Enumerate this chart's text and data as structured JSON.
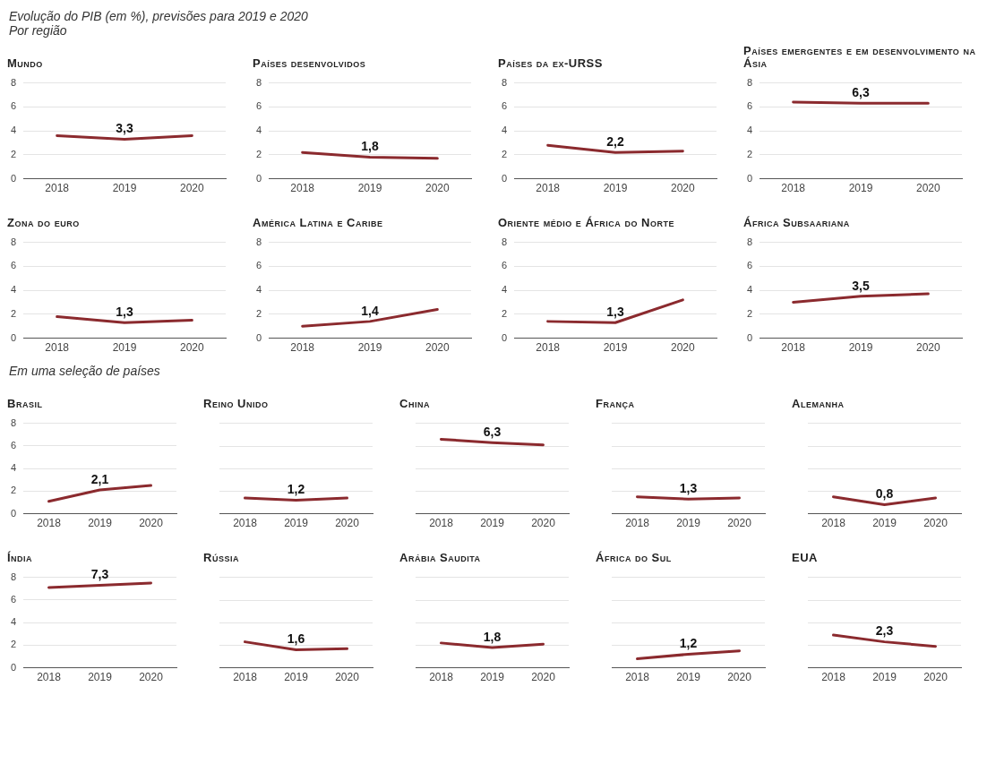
{
  "chart_data": [
    {
      "type": "other",
      "title": "Evolução do PIB (em %), previsões para 2019 e 2020",
      "subtitle": "Por região"
    },
    {
      "type": "line",
      "title": "Mundo",
      "categories": [
        "2018",
        "2019",
        "2020"
      ],
      "values": [
        3.6,
        3.3,
        3.6
      ],
      "value_labels": [
        null,
        "3,3",
        null
      ],
      "color": "#8b2a2e",
      "ylim": [
        0,
        8
      ],
      "yticks": [
        0,
        2,
        4,
        6,
        8
      ],
      "grid": "y"
    },
    {
      "type": "line",
      "title": "Países desenvolvidos",
      "categories": [
        "2018",
        "2019",
        "2020"
      ],
      "values": [
        2.2,
        1.8,
        1.7
      ],
      "value_labels": [
        null,
        "1,8",
        null
      ],
      "color": "#8b2a2e",
      "ylim": [
        0,
        8
      ],
      "yticks": [
        0,
        2,
        4,
        6,
        8
      ],
      "grid": "y"
    },
    {
      "type": "line",
      "title": "Países da ex-URSS",
      "categories": [
        "2018",
        "2019",
        "2020"
      ],
      "values": [
        2.8,
        2.2,
        2.3
      ],
      "value_labels": [
        null,
        "2,2",
        null
      ],
      "color": "#8b2a2e",
      "ylim": [
        0,
        8
      ],
      "yticks": [
        0,
        2,
        4,
        6,
        8
      ],
      "grid": "y"
    },
    {
      "type": "line",
      "title": "Países emergentes e em desenvolvimento na Ásia",
      "categories": [
        "2018",
        "2019",
        "2020"
      ],
      "values": [
        6.4,
        6.3,
        6.3
      ],
      "value_labels": [
        null,
        "6,3",
        null
      ],
      "color": "#8b2a2e",
      "ylim": [
        0,
        8
      ],
      "yticks": [
        0,
        2,
        4,
        6,
        8
      ],
      "grid": "y"
    },
    {
      "type": "line",
      "title": "Zona do euro",
      "categories": [
        "2018",
        "2019",
        "2020"
      ],
      "values": [
        1.8,
        1.3,
        1.5
      ],
      "value_labels": [
        null,
        "1,3",
        null
      ],
      "color": "#8b2a2e",
      "ylim": [
        0,
        8
      ],
      "yticks": [
        0,
        2,
        4,
        6,
        8
      ],
      "grid": "y"
    },
    {
      "type": "line",
      "title": "América Latina e Caribe",
      "categories": [
        "2018",
        "2019",
        "2020"
      ],
      "values": [
        1.0,
        1.4,
        2.4
      ],
      "value_labels": [
        null,
        "1,4",
        null
      ],
      "color": "#8b2a2e",
      "ylim": [
        0,
        8
      ],
      "yticks": [
        0,
        2,
        4,
        6,
        8
      ],
      "grid": "y"
    },
    {
      "type": "line",
      "title": "Oriente médio e África do Norte",
      "categories": [
        "2018",
        "2019",
        "2020"
      ],
      "values": [
        1.4,
        1.3,
        3.2
      ],
      "value_labels": [
        null,
        "1,3",
        null
      ],
      "color": "#8b2a2e",
      "ylim": [
        0,
        8
      ],
      "yticks": [
        0,
        2,
        4,
        6,
        8
      ],
      "grid": "y"
    },
    {
      "type": "line",
      "title": "África Subsaariana",
      "categories": [
        "2018",
        "2019",
        "2020"
      ],
      "values": [
        3.0,
        3.5,
        3.7
      ],
      "value_labels": [
        null,
        "3,5",
        null
      ],
      "color": "#8b2a2e",
      "ylim": [
        0,
        8
      ],
      "yticks": [
        0,
        2,
        4,
        6,
        8
      ],
      "grid": "y"
    },
    {
      "type": "other",
      "title": "Em uma seleção de países"
    },
    {
      "type": "line",
      "title": "Brasil",
      "categories": [
        "2018",
        "2019",
        "2020"
      ],
      "values": [
        1.1,
        2.1,
        2.5
      ],
      "value_labels": [
        null,
        "2,1",
        null
      ],
      "color": "#8b2a2e",
      "ylim": [
        0,
        8
      ],
      "yticks": [
        0,
        2,
        4,
        6,
        8
      ],
      "grid": "y"
    },
    {
      "type": "line",
      "title": "Reino Unido",
      "categories": [
        "2018",
        "2019",
        "2020"
      ],
      "values": [
        1.4,
        1.2,
        1.4
      ],
      "value_labels": [
        null,
        "1,2",
        null
      ],
      "color": "#8b2a2e",
      "ylim": [
        0,
        8
      ],
      "yticks": [
        0,
        2,
        4,
        6,
        8
      ],
      "grid": "y",
      "tick_labels": "x"
    },
    {
      "type": "line",
      "title": "China",
      "categories": [
        "2018",
        "2019",
        "2020"
      ],
      "values": [
        6.6,
        6.3,
        6.1
      ],
      "value_labels": [
        null,
        "6,3",
        null
      ],
      "color": "#8b2a2e",
      "ylim": [
        0,
        8
      ],
      "yticks": [
        0,
        2,
        4,
        6,
        8
      ],
      "grid": "y",
      "tick_labels": "x"
    },
    {
      "type": "line",
      "title": "França",
      "categories": [
        "2018",
        "2019",
        "2020"
      ],
      "values": [
        1.5,
        1.3,
        1.4
      ],
      "value_labels": [
        null,
        "1,3",
        null
      ],
      "color": "#8b2a2e",
      "ylim": [
        0,
        8
      ],
      "yticks": [
        0,
        2,
        4,
        6,
        8
      ],
      "grid": "y",
      "tick_labels": "x"
    },
    {
      "type": "line",
      "title": "Alemanha",
      "categories": [
        "2018",
        "2019",
        "2020"
      ],
      "values": [
        1.5,
        0.8,
        1.4
      ],
      "value_labels": [
        null,
        "0,8",
        null
      ],
      "color": "#8b2a2e",
      "ylim": [
        0,
        8
      ],
      "yticks": [
        0,
        2,
        4,
        6,
        8
      ],
      "grid": "y",
      "tick_labels": "x"
    },
    {
      "type": "line",
      "title": "Índia",
      "categories": [
        "2018",
        "2019",
        "2020"
      ],
      "values": [
        7.1,
        7.3,
        7.5
      ],
      "value_labels": [
        null,
        "7,3",
        null
      ],
      "color": "#8b2a2e",
      "ylim": [
        0,
        8
      ],
      "yticks": [
        0,
        2,
        4,
        6,
        8
      ],
      "grid": "y"
    },
    {
      "type": "line",
      "title": "Rússia",
      "categories": [
        "2018",
        "2019",
        "2020"
      ],
      "values": [
        2.3,
        1.6,
        1.7
      ],
      "value_labels": [
        null,
        "1,6",
        null
      ],
      "color": "#8b2a2e",
      "ylim": [
        0,
        8
      ],
      "yticks": [
        0,
        2,
        4,
        6,
        8
      ],
      "grid": "y",
      "tick_labels": "x"
    },
    {
      "type": "line",
      "title": "Arábia Saudita",
      "categories": [
        "2018",
        "2019",
        "2020"
      ],
      "values": [
        2.2,
        1.8,
        2.1
      ],
      "value_labels": [
        null,
        "1,8",
        null
      ],
      "color": "#8b2a2e",
      "ylim": [
        0,
        8
      ],
      "yticks": [
        0,
        2,
        4,
        6,
        8
      ],
      "grid": "y",
      "tick_labels": "x"
    },
    {
      "type": "line",
      "title": "África do Sul",
      "categories": [
        "2018",
        "2019",
        "2020"
      ],
      "values": [
        0.8,
        1.2,
        1.5
      ],
      "value_labels": [
        null,
        "1,2",
        null
      ],
      "color": "#8b2a2e",
      "ylim": [
        0,
        8
      ],
      "yticks": [
        0,
        2,
        4,
        6,
        8
      ],
      "grid": "y",
      "tick_labels": "x"
    },
    {
      "type": "line",
      "title": "EUA",
      "categories": [
        "2018",
        "2019",
        "2020"
      ],
      "values": [
        2.9,
        2.3,
        1.9
      ],
      "value_labels": [
        null,
        "2,3",
        null
      ],
      "color": "#8b2a2e",
      "ylim": [
        0,
        8
      ],
      "yticks": [
        0,
        2,
        4,
        6,
        8
      ],
      "grid": "y",
      "tick_labels": "x"
    }
  ]
}
